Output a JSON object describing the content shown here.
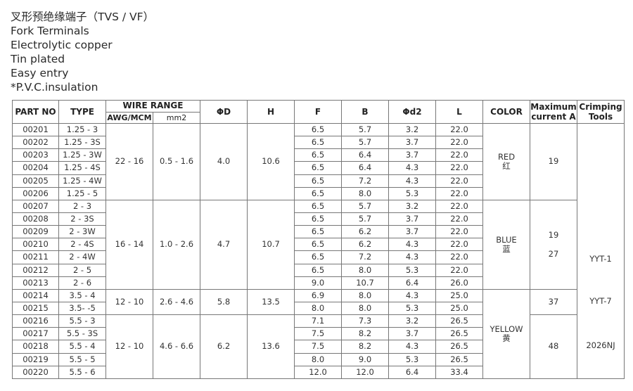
{
  "title_lines": [
    "叉形预绝缘端子（TVS / VF）",
    "Fork Terminals",
    "Electrolytic copper",
    "Tin plated",
    "Easy entry",
    "*P.V.C.insulation"
  ],
  "headers": {
    "part_no": "PART NO",
    "type": "TYPE",
    "wire_range": "WIRE RANGE",
    "awg": "AWG/MCM",
    "mm2": "mm2",
    "d": "ΦD",
    "h": "H",
    "f": "F",
    "b": "B",
    "d2": "Φd2",
    "l": "L",
    "color": "COLOR",
    "max_current": "Maximum current A",
    "crimping": "Crimping Tools"
  },
  "groups": [
    {
      "awg": "22 - 16",
      "mm2": "0.5 - 1.6",
      "d": "4.0",
      "h": "10.6"
    },
    {
      "awg": "16 - 14",
      "mm2": "1.0 - 2.6",
      "d": "4.7",
      "h": "10.7"
    },
    {
      "awg": "12 - 10",
      "mm2": "2.6 - 4.6",
      "d": "5.8",
      "h": "13.5"
    },
    {
      "awg": "12 - 10",
      "mm2": "4.6 - 6.6",
      "d": "6.2",
      "h": "13.6"
    }
  ],
  "colors": [
    {
      "en": "RED",
      "cn": "红"
    },
    {
      "en": "BLUE",
      "cn": "蓝"
    },
    {
      "en": "YELLOW",
      "cn": "黄"
    }
  ],
  "max_current": {
    "red": "19",
    "blue_1": "19",
    "blue_2": "27",
    "yellow_1": "37",
    "yellow_2": "48"
  },
  "crimping_tools": [
    "YYT-1",
    "YYT-7",
    "2026NJ"
  ],
  "rows": [
    [
      "00201",
      "1.25 - 3",
      "6.5",
      "5.7",
      "3.2",
      "22.0"
    ],
    [
      "00202",
      "1.25 - 3S",
      "6.5",
      "5.7",
      "3.7",
      "22.0"
    ],
    [
      "00203",
      "1.25 - 3W",
      "6.5",
      "6.4",
      "3.7",
      "22.0"
    ],
    [
      "00204",
      "1.25 - 4S",
      "6.5",
      "6.4",
      "4.3",
      "22.0"
    ],
    [
      "00205",
      "1.25 - 4W",
      "6.5",
      "7.2",
      "4.3",
      "22.0"
    ],
    [
      "00206",
      "1.25 - 5",
      "6.5",
      "8.0",
      "5.3",
      "22.0"
    ],
    [
      "00207",
      "2 - 3",
      "6.5",
      "5.7",
      "3.2",
      "22.0"
    ],
    [
      "00208",
      "2 - 3S",
      "6.5",
      "5.7",
      "3.7",
      "22.0"
    ],
    [
      "00209",
      "2 - 3W",
      "6.5",
      "6.2",
      "3.7",
      "22.0"
    ],
    [
      "00210",
      "2 - 4S",
      "6.5",
      "6.2",
      "4.3",
      "22.0"
    ],
    [
      "00211",
      "2 - 4W",
      "6.5",
      "7.2",
      "4.3",
      "22.0"
    ],
    [
      "00212",
      "2 - 5",
      "6.5",
      "8.0",
      "5.3",
      "22.0"
    ],
    [
      "00213",
      "2 - 6",
      "9.0",
      "10.7",
      "6.4",
      "26.0"
    ],
    [
      "00214",
      "3.5 - 4",
      "6.9",
      "8.0",
      "4.3",
      "25.0"
    ],
    [
      "00215",
      "3.5- -5",
      "8.0",
      "8.0",
      "5.3",
      "25.0"
    ],
    [
      "00216",
      "5.5 - 3",
      "7.1",
      "7.3",
      "3.2",
      "26.5"
    ],
    [
      "00217",
      "5.5 - 3S",
      "7.5",
      "8.2",
      "3.7",
      "26.5"
    ],
    [
      "00218",
      "5.5 - 4",
      "7.5",
      "8.2",
      "4.3",
      "26.5"
    ],
    [
      "00219",
      "5.5 - 5",
      "8.0",
      "9.0",
      "5.3",
      "26.5"
    ],
    [
      "00220",
      "5.5 - 6",
      "12.0",
      "12.0",
      "6.4",
      "33.4"
    ]
  ]
}
